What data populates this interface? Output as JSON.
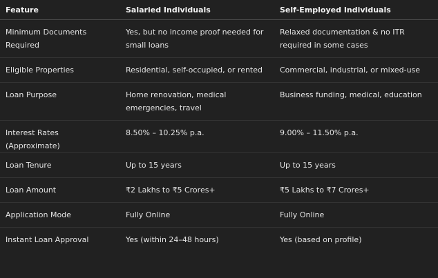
{
  "table": {
    "headers": [
      "Feature",
      "Salaried Individuals",
      "Self-Employed Individuals"
    ],
    "rows": [
      [
        "Minimum Documents Required",
        "Yes, but no income proof needed for small loans",
        "Relaxed documentation & no ITR required in some cases"
      ],
      [
        "Eligible Properties",
        "Residential, self-occupied, or rented",
        "Commercial, industrial, or mixed-use"
      ],
      [
        "Loan Purpose",
        "Home renovation, medical emergencies, travel",
        "Business funding, medical, education"
      ],
      [
        "Interest Rates (Approximate)",
        "8.50% – 10.25% p.a.",
        "9.00% – 11.50% p.a."
      ],
      [
        "Loan Tenure",
        "Up to 15 years",
        "Up to 15 years"
      ],
      [
        "Loan Amount",
        "₹2 Lakhs to ₹5 Crores+",
        "₹5 Lakhs to ₹7 Crores+"
      ],
      [
        "Application Mode",
        "Fully Online",
        "Fully Online"
      ],
      [
        "Instant Loan Approval",
        "Yes (within 24–48 hours)",
        "Yes (based on profile)"
      ]
    ]
  }
}
